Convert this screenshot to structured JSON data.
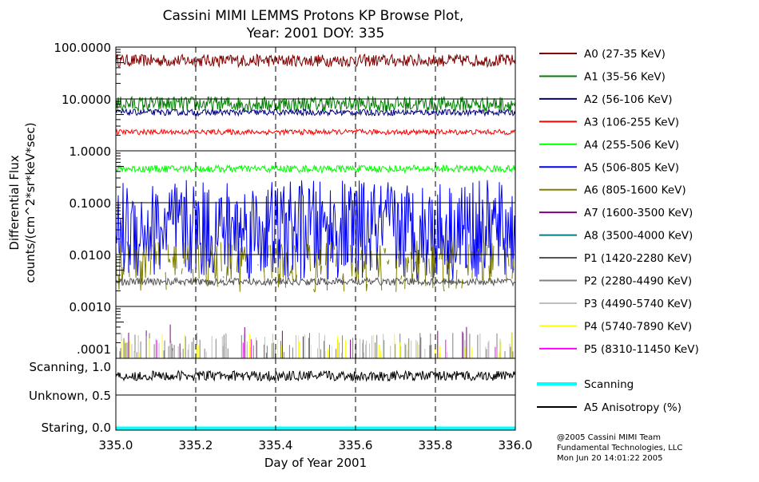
{
  "chart_data": {
    "type": "line",
    "title": "Cassini MIMI LEMMS Protons KP Browse Plot,",
    "subtitle": "Year: 2001 DOY: 335",
    "xlabel": "Day of Year 2001",
    "ylabel_line1": "Differential Flux",
    "ylabel_line2": "counts/(cm^2*sr*keV*sec)",
    "xlim": [
      335.0,
      336.0
    ],
    "x_ticks": [
      "335.0",
      "335.2",
      "335.4",
      "335.6",
      "335.8",
      "336.0"
    ],
    "y_scale": "log",
    "ylim": [
      0.0001,
      100
    ],
    "y_ticks": [
      "100.0000",
      "10.0000",
      "1.0000",
      "0.1000",
      "0.0100",
      "0.0010",
      ".0001"
    ],
    "series": [
      {
        "name": "A0 (27-35 KeV)",
        "color": "#800000",
        "level": 55,
        "spread": 0.12,
        "sparse": 0
      },
      {
        "name": "A1 (35-56 KeV)",
        "color": "#008000",
        "level": 8,
        "spread": 0.15,
        "sparse": 0
      },
      {
        "name": "A2 (56-106 KeV)",
        "color": "#000080",
        "level": 5.5,
        "spread": 0.06,
        "sparse": 0
      },
      {
        "name": "A3 (106-255 KeV)",
        "color": "#ff0000",
        "level": 2.3,
        "spread": 0.05,
        "sparse": 0
      },
      {
        "name": "A4 (255-506 KeV)",
        "color": "#00ff00",
        "level": 0.45,
        "spread": 0.07,
        "sparse": 0
      },
      {
        "name": "A5 (506-805 KeV)",
        "color": "#0000ff",
        "level": 0.03,
        "spread": 0.6,
        "sparse": 0
      },
      {
        "name": "A6 (805-1600 KeV)",
        "color": "#808000",
        "level": 0.006,
        "spread": 0.5,
        "sparse": 0.4
      },
      {
        "name": "A7 (1600-3500 KeV)",
        "color": "#800080",
        "level": 0.0003,
        "spread": 0.2,
        "sparse": 0.97
      },
      {
        "name": "A8 (3500-4000 KeV)",
        "color": "#008080",
        "level": 0.0003,
        "spread": 0.2,
        "sparse": 1
      },
      {
        "name": "P1 (1420-2280 KeV)",
        "color": "#555555",
        "level": 0.003,
        "spread": 0.07,
        "sparse": 0
      },
      {
        "name": "P2 (2280-4490 KeV)",
        "color": "#808080",
        "level": 0.0002,
        "spread": 0.2,
        "sparse": 0.85
      },
      {
        "name": "P3 (4490-5740 KeV)",
        "color": "#c0c0c0",
        "level": 0.0002,
        "spread": 0.2,
        "sparse": 0.9
      },
      {
        "name": "P4 (5740-7890 KeV)",
        "color": "#ffff00",
        "level": 0.0002,
        "spread": 0.2,
        "sparse": 0.92
      },
      {
        "name": "P5 (8310-11450 KeV)",
        "color": "#ff00ff",
        "level": 0.0002,
        "spread": 0.2,
        "sparse": 0.99
      }
    ],
    "lower_panel": {
      "y_ticks": [
        "Scanning, 1.0",
        "Unknown, 0.5",
        "Staring, 0.0"
      ],
      "ylim": [
        0,
        1.0
      ],
      "series": [
        {
          "name": "Scanning",
          "color": "#00ffff",
          "level": 0.0
        },
        {
          "name": "A5 Anisotropy (%)",
          "color": "#000000",
          "level": 0.8,
          "spread": 0.06
        }
      ]
    }
  },
  "footer": [
    "@2005 Cassini MIMI Team",
    "Fundamental Technologies, LLC",
    "Mon Jun 20 14:01:22 2005"
  ]
}
